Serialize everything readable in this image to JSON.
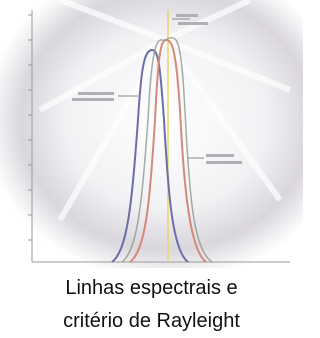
{
  "caption": {
    "lines": [
      "Linhas espectrais e",
      "critério de Rayleight"
    ]
  }
}
